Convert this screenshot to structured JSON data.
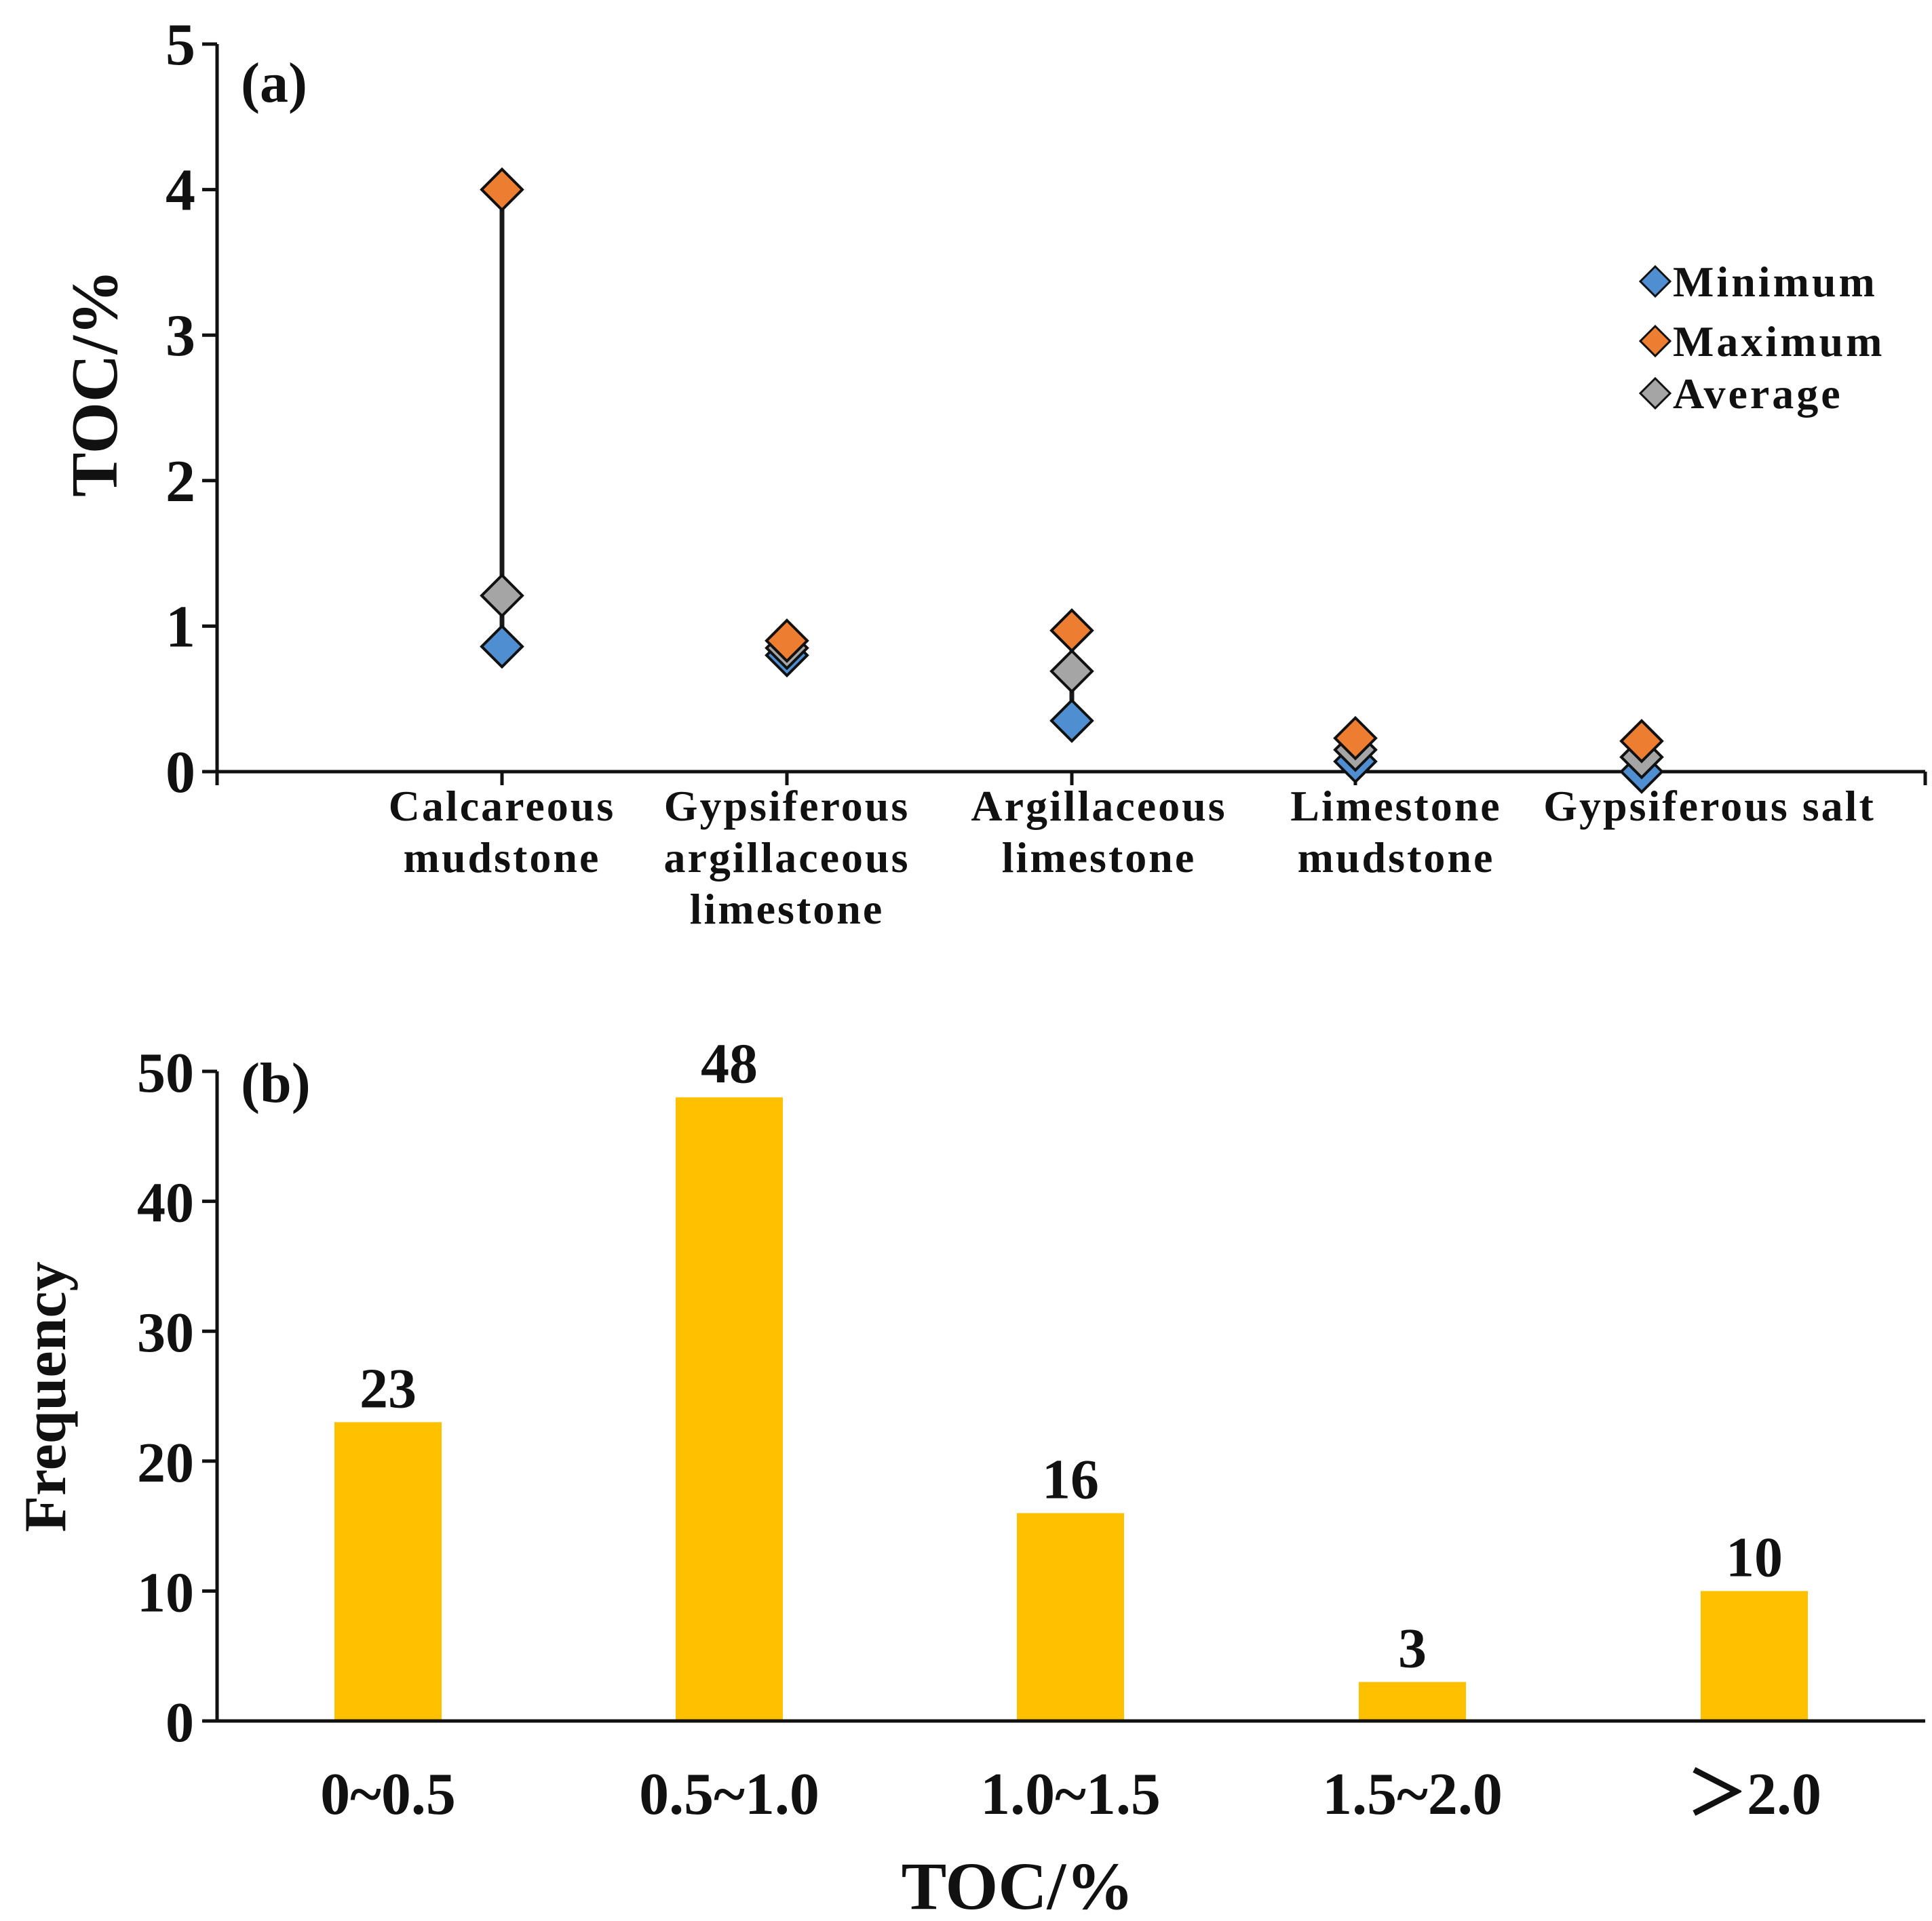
{
  "chart_data": [
    {
      "panel": "(a)",
      "type": "scatter",
      "title": "",
      "xlabel": "",
      "ylabel": "TOC/%",
      "ylim": [
        0,
        5
      ],
      "yticks": [
        "0",
        "1",
        "2",
        "3",
        "4",
        "5"
      ],
      "categories": [
        [
          "Calcareous",
          "mudstone"
        ],
        [
          "Gypsiferous",
          "argillaceous",
          "limestone"
        ],
        [
          "Argillaceous",
          "limestone"
        ],
        [
          "Limestone",
          "mudstone"
        ],
        [
          "Gypsiferous salt"
        ]
      ],
      "series": [
        {
          "name": "Minimum",
          "color": "#4f8ed0",
          "values": [
            0.86,
            0.8,
            0.35,
            0.07,
            0.0
          ]
        },
        {
          "name": "Maximum",
          "color": "#ed7d31",
          "values": [
            4.0,
            0.9,
            0.97,
            0.23,
            0.21
          ]
        },
        {
          "name": "Average",
          "color": "#a5a5a5",
          "values": [
            1.21,
            0.85,
            0.69,
            0.15,
            0.1
          ]
        }
      ],
      "legend": [
        "Minimum",
        "Maximum",
        "Average"
      ],
      "legend_position": "top-right"
    },
    {
      "panel": "(b)",
      "type": "bar",
      "title": "",
      "xlabel": "TOC/%",
      "ylabel": "Frequency",
      "ylim": [
        0,
        50
      ],
      "yticks": [
        "0",
        "10",
        "20",
        "30",
        "40",
        "50"
      ],
      "categories": [
        "0~0.5",
        "0.5~1.0",
        "1.0~1.5",
        "1.5~2.0",
        "＞2.0"
      ],
      "values": [
        23,
        48,
        16,
        3,
        10
      ],
      "data_labels": [
        "23",
        "48",
        "16",
        "3",
        "10"
      ],
      "color": "#ffc000"
    }
  ]
}
